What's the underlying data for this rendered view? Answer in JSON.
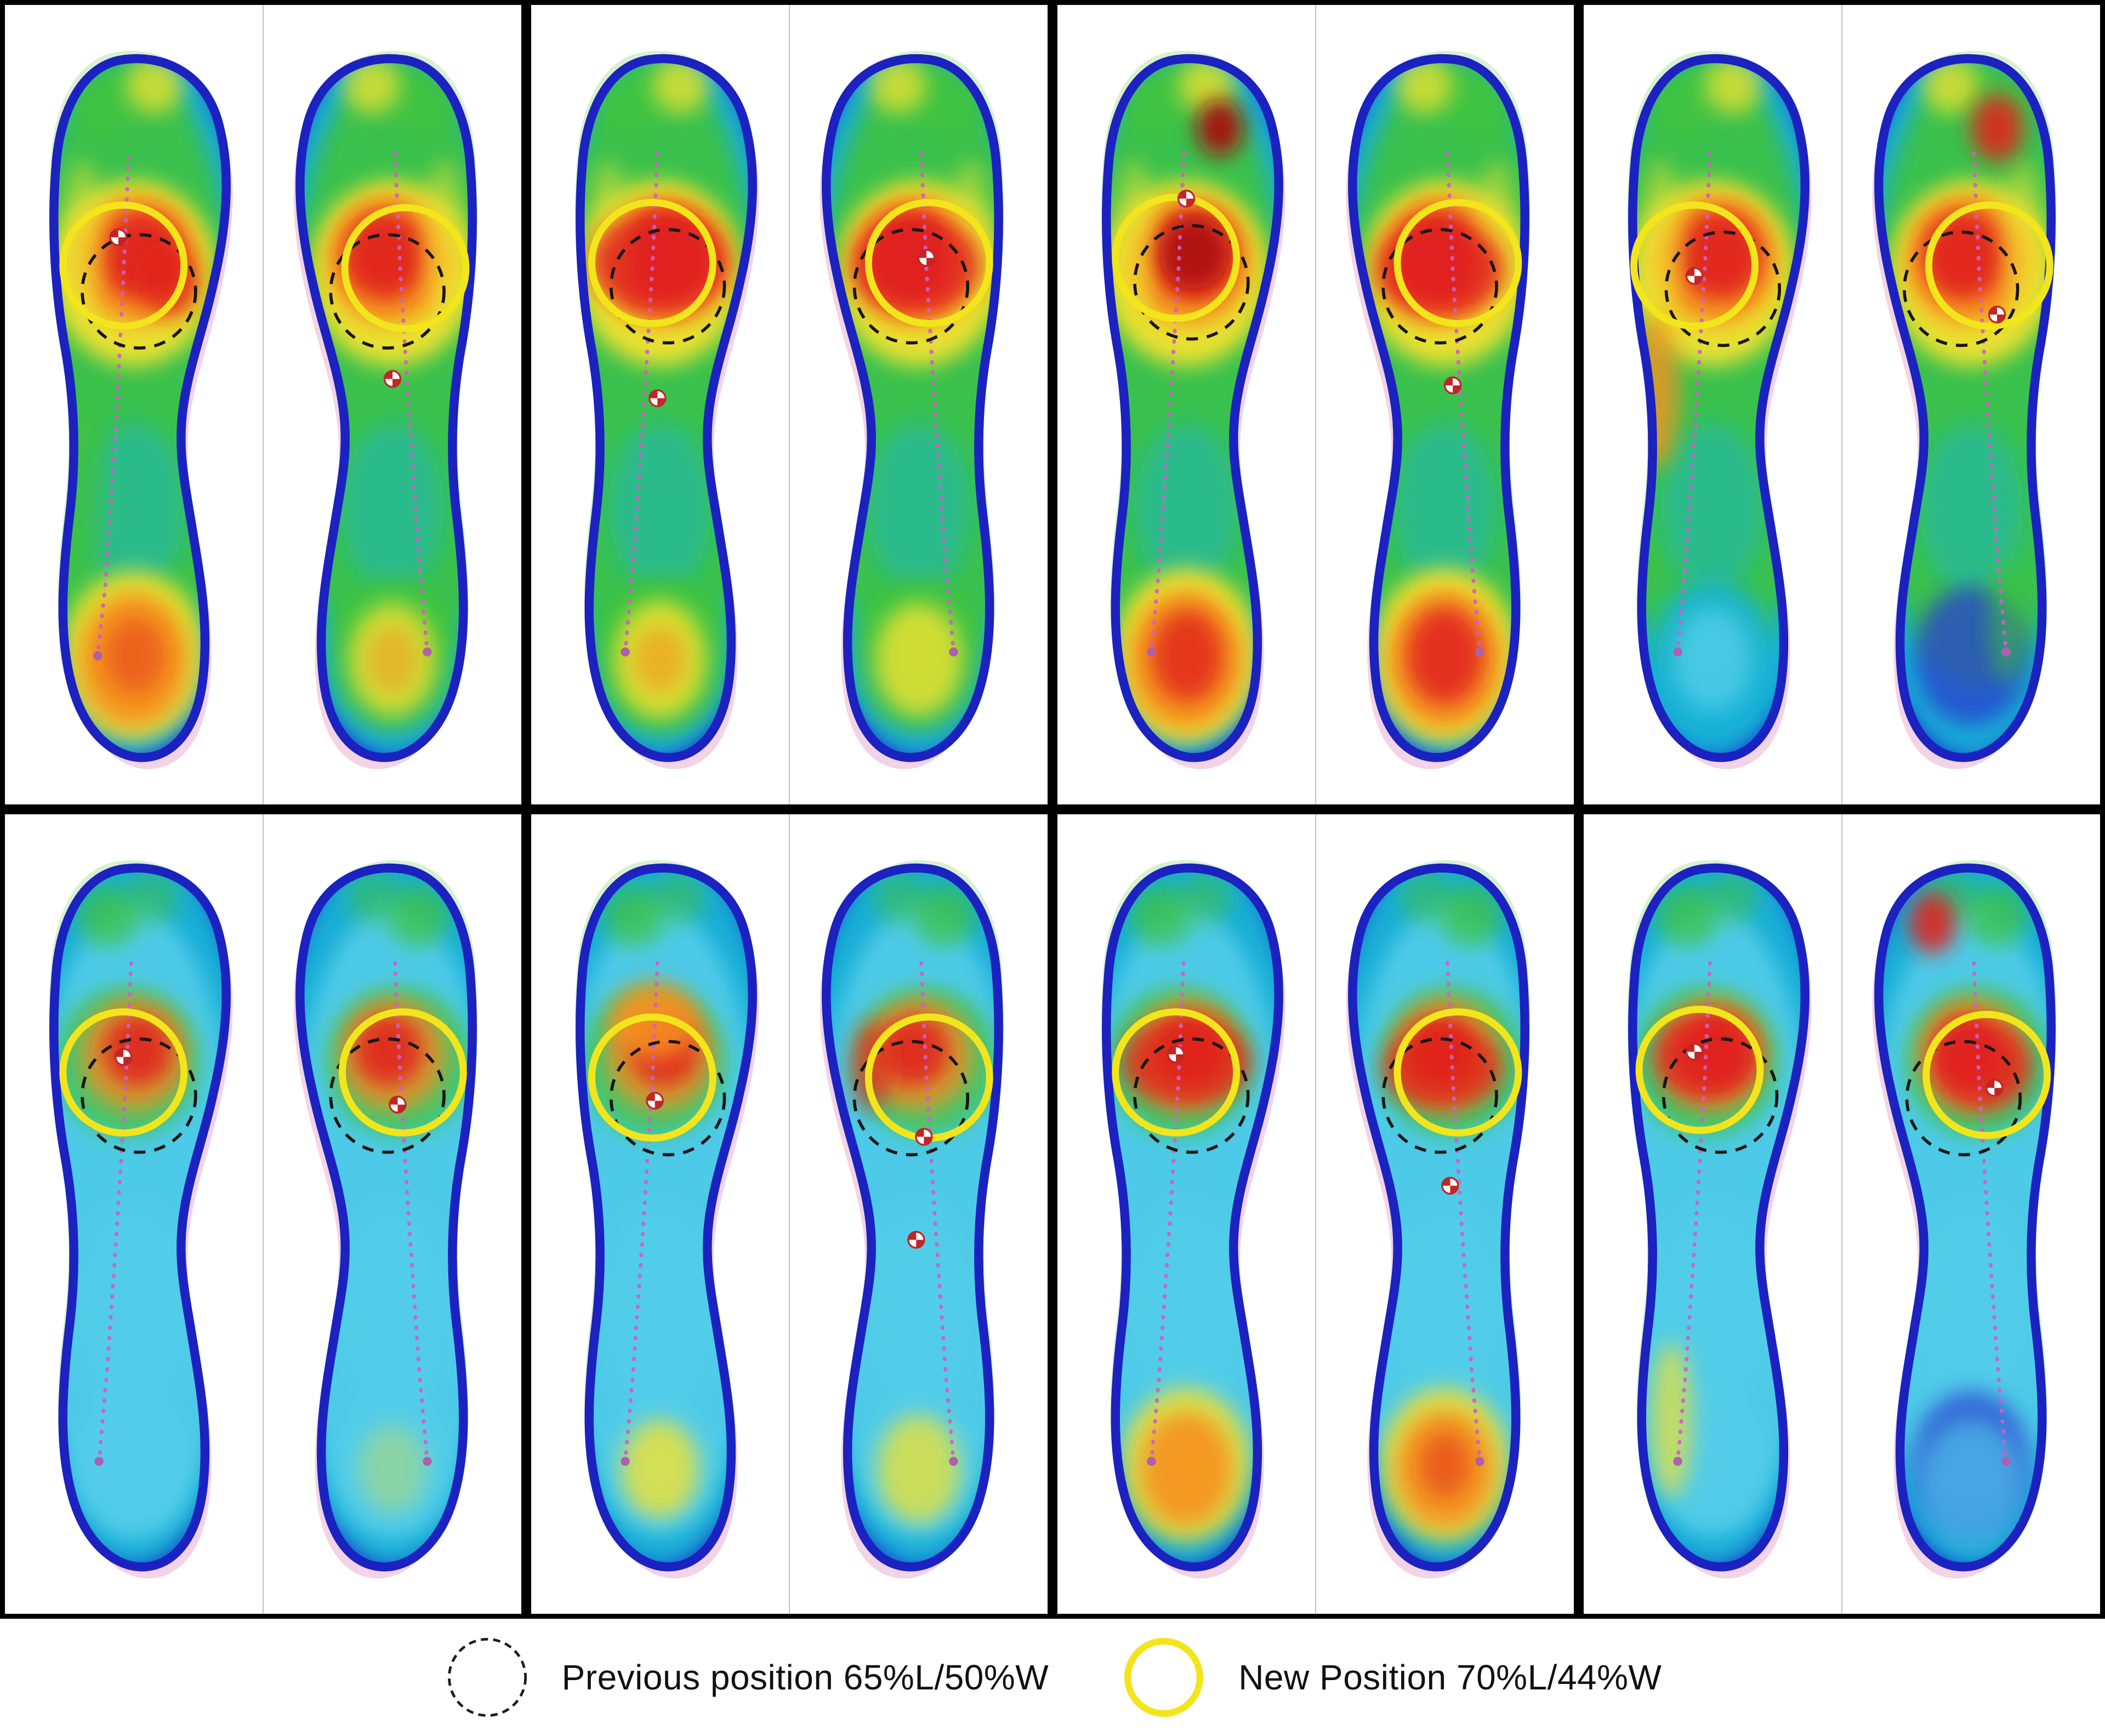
{
  "figure": {
    "rows": 2,
    "cols": 4,
    "background": "#ffffff",
    "panel_border_color": "#000000"
  },
  "legend": {
    "previous_label": "Previous position 65%L/50%W",
    "new_label": "New Position 70%L/44%W",
    "previous_circle_color": "#1a1a1a",
    "new_circle_color": "#f2e51c"
  },
  "chart_data": {
    "type": "heatmap",
    "title": "",
    "description": "Plantar pressure heatmaps for 8 trials (left and right insoles). Dashed black circle marks previous sensor position 65%L/50%W; solid yellow circle marks new position 70%L/44%W. Dotted magenta line is the center-of-pressure trajectory; checkered red/white markers show peak pressure locations.",
    "colormap": [
      "#1626c9",
      "#17b4d6",
      "#53cdea",
      "#3fc33f",
      "#f2e32f",
      "#f7921e",
      "#e0221c",
      "#a80d0d"
    ],
    "annotations": {
      "previous_position": {
        "label": "Previous position 65%L/50%W",
        "length_pct": 65,
        "width_pct": 50,
        "style": "dashed-black-circle"
      },
      "new_position": {
        "label": "New Position 70%L/44%W",
        "length_pct": 70,
        "width_pct": 44,
        "style": "solid-yellow-circle"
      }
    },
    "palette": {
      "c": "#17b4d6",
      "lb": "#53cdea",
      "g": "#3fc33f",
      "y": "#f2e32f",
      "o": "#f7921e",
      "r": "#e0221c",
      "dr": "#a80d0d",
      "b2": "#2a3fd0"
    },
    "patterns": {
      "hi": [
        [
          100,
          300,
          102,
          285,
          "c",
          0.95
        ],
        [
          97,
          285,
          84,
          245,
          "g",
          0.9
        ],
        [
          100,
          208,
          64,
          72,
          "y",
          0.95
        ],
        [
          103,
          198,
          47,
          50,
          "o",
          0.95
        ],
        [
          106,
          194,
          33,
          35,
          "r",
          0.95
        ],
        [
          76,
          78,
          26,
          26,
          "g",
          0.85
        ],
        [
          116,
          62,
          22,
          22,
          "y",
          0.75
        ],
        [
          60,
          180,
          16,
          60,
          "y",
          0.5
        ],
        [
          100,
          390,
          40,
          66,
          "c",
          0.45
        ]
      ],
      "lo": [
        [
          100,
          300,
          102,
          285,
          "c",
          0.95
        ],
        [
          100,
          310,
          84,
          240,
          "lb",
          0.9
        ],
        [
          95,
          192,
          56,
          58,
          "g",
          0.75
        ],
        [
          100,
          186,
          42,
          44,
          "o",
          0.8
        ],
        [
          103,
          183,
          27,
          28,
          "r",
          0.9
        ],
        [
          80,
          78,
          24,
          24,
          "g",
          0.75
        ],
        [
          115,
          64,
          20,
          20,
          "g",
          0.55
        ],
        [
          100,
          385,
          52,
          85,
          "lb",
          0.8
        ]
      ]
    },
    "defaults": {
      "prev_r": 44,
      "new_r": 47,
      "traj_left": [
        [
          98,
          115
        ],
        [
          94,
          205
        ],
        [
          87,
          320
        ],
        [
          79,
          435
        ],
        [
          73,
          502
        ]
      ],
      "traj_right": [
        [
          102,
          115
        ],
        [
          106,
          205
        ],
        [
          113,
          320
        ],
        [
          121,
          435
        ],
        [
          127,
          502
        ]
      ]
    },
    "panels": [
      {
        "id": 1,
        "feet": [
          {
            "side": "left",
            "pattern": "hi",
            "prev": [
              104,
              222
            ],
            "new": [
              92,
              202
            ],
            "markers": [
              [
                88,
                180
              ]
            ],
            "extras": [
              [
                128,
                215,
                22,
                26,
                "r",
                0.8
              ],
              [
                58,
                370,
                20,
                70,
                "g",
                0.6
              ],
              [
                100,
                505,
                56,
                66,
                "y",
                0.9
              ],
              [
                100,
                508,
                42,
                52,
                "o",
                0.95
              ],
              [
                101,
                505,
                24,
                30,
                "r",
                0.45
              ]
            ],
            "traj": [
              [
                96,
                118
              ],
              [
                92,
                210
              ],
              [
                86,
                330
              ],
              [
                78,
                450
              ],
              [
                72,
                505
              ]
            ]
          },
          {
            "side": "right",
            "pattern": "hi",
            "prev": [
              96,
              222
            ],
            "new": [
              110,
              204
            ],
            "markers": [
              [
                100,
                290
              ]
            ],
            "extras": [
              [
                100,
                505,
                50,
                60,
                "g",
                0.85
              ],
              [
                100,
                508,
                34,
                44,
                "y",
                0.8
              ],
              [
                100,
                508,
                20,
                26,
                "o",
                0.5
              ]
            ]
          }
        ]
      },
      {
        "id": 2,
        "feet": [
          {
            "side": "left",
            "pattern": "hi",
            "prev": [
              106,
              218
            ],
            "new": [
              94,
              200
            ],
            "markers": [
              [
                98,
                305
              ]
            ],
            "extras": [
              [
                100,
                200,
                54,
                40,
                "r",
                0.85
              ],
              [
                100,
                505,
                52,
                62,
                "g",
                0.9
              ],
              [
                100,
                508,
                36,
                46,
                "y",
                0.85
              ],
              [
                100,
                508,
                20,
                26,
                "o",
                0.6
              ]
            ]
          },
          {
            "side": "right",
            "pattern": "hi",
            "prev": [
              94,
              218
            ],
            "new": [
              108,
              200
            ],
            "markers": [
              [
                106,
                196
              ]
            ],
            "extras": [
              [
                98,
                202,
                50,
                38,
                "r",
                0.85
              ],
              [
                100,
                505,
                50,
                60,
                "g",
                0.85
              ],
              [
                100,
                508,
                34,
                44,
                "y",
                0.8
              ]
            ]
          }
        ]
      },
      {
        "id": 3,
        "feet": [
          {
            "side": "left",
            "pattern": "hi",
            "prev": [
              104,
              215
            ],
            "new": [
              92,
              196
            ],
            "markers": [
              [
                100,
                150
              ]
            ],
            "extras": [
              [
                126,
                95,
                18,
                22,
                "dr",
                0.95
              ],
              [
                106,
                192,
                26,
                28,
                "dr",
                0.85
              ],
              [
                100,
                505,
                56,
                68,
                "y",
                0.95
              ],
              [
                100,
                508,
                44,
                54,
                "o",
                0.95
              ],
              [
                101,
                505,
                28,
                36,
                "r",
                0.8
              ]
            ]
          },
          {
            "side": "right",
            "pattern": "hi",
            "prev": [
              96,
              218
            ],
            "new": [
              110,
              200
            ],
            "markers": [
              [
                106,
                295
              ]
            ],
            "extras": [
              [
                96,
                205,
                50,
                36,
                "r",
                0.85
              ],
              [
                100,
                505,
                56,
                68,
                "y",
                0.95
              ],
              [
                100,
                508,
                44,
                54,
                "o",
                0.95
              ],
              [
                100,
                505,
                30,
                38,
                "r",
                0.85
              ]
            ]
          }
        ]
      },
      {
        "id": 4,
        "feet": [
          {
            "side": "left",
            "pattern": "hi",
            "prev": [
              108,
              220
            ],
            "new": [
              86,
              202
            ],
            "markers": [
              [
                86,
                210
              ]
            ],
            "extras": [
              [
                56,
                300,
                18,
                60,
                "o",
                0.8
              ],
              [
                100,
                505,
                48,
                58,
                "c",
                0.9
              ],
              [
                100,
                508,
                30,
                40,
                "lb",
                0.8
              ]
            ]
          },
          {
            "side": "right",
            "pattern": "hi",
            "prev": [
              92,
              220
            ],
            "new": [
              114,
              202
            ],
            "markers": [
              [
                120,
                240
              ]
            ],
            "extras": [
              [
                120,
                95,
                20,
                26,
                "r",
                0.9
              ],
              [
                100,
                505,
                44,
                54,
                "b2",
                0.75
              ],
              [
                128,
                478,
                14,
                48,
                "g",
                0.55
              ]
            ]
          }
        ]
      },
      {
        "id": 5,
        "feet": [
          {
            "side": "left",
            "pattern": "lo",
            "prev": [
              104,
              218
            ],
            "new": [
              92,
              200
            ],
            "markers": [
              [
                92,
                188
              ]
            ],
            "extras": [
              [
                100,
                505,
                48,
                58,
                "lb",
                0.9
              ]
            ]
          },
          {
            "side": "right",
            "pattern": "lo",
            "prev": [
              96,
              218
            ],
            "new": [
              108,
              200
            ],
            "markers": [
              [
                104,
                225
              ]
            ],
            "extras": [
              [
                100,
                505,
                48,
                58,
                "lb",
                0.9
              ],
              [
                100,
                508,
                26,
                34,
                "y",
                0.35
              ]
            ]
          }
        ]
      },
      {
        "id": 6,
        "feet": [
          {
            "side": "left",
            "pattern": "lo",
            "prev": [
              106,
              220
            ],
            "new": [
              94,
              204
            ],
            "markers": [
              [
                96,
                222
              ]
            ],
            "extras": [
              [
                95,
                160,
                34,
                30,
                "o",
                0.85
              ],
              [
                100,
                505,
                44,
                54,
                "lb",
                0.9
              ],
              [
                100,
                508,
                30,
                38,
                "y",
                0.8
              ]
            ]
          },
          {
            "side": "right",
            "pattern": "lo",
            "prev": [
              94,
              220
            ],
            "new": [
              108,
              204
            ],
            "markers": [
              [
                104,
                250
              ],
              [
                98,
                330
              ]
            ],
            "extras": [
              [
                64,
                195,
                16,
                34,
                "r",
                0.7
              ],
              [
                100,
                505,
                46,
                56,
                "lb",
                0.9
              ],
              [
                100,
                508,
                32,
                42,
                "y",
                0.75
              ]
            ]
          }
        ]
      },
      {
        "id": 7,
        "feet": [
          {
            "side": "left",
            "pattern": "lo",
            "prev": [
              104,
              218
            ],
            "new": [
              92,
              200
            ],
            "markers": [
              [
                92,
                186
              ]
            ],
            "extras": [
              [
                100,
                192,
                50,
                34,
                "r",
                0.8
              ],
              [
                100,
                505,
                50,
                60,
                "y",
                0.85
              ],
              [
                100,
                508,
                36,
                44,
                "o",
                0.9
              ]
            ]
          },
          {
            "side": "right",
            "pattern": "lo",
            "prev": [
              96,
              218
            ],
            "new": [
              110,
              200
            ],
            "markers": [
              [
                104,
                288
              ]
            ],
            "extras": [
              [
                98,
                196,
                46,
                32,
                "r",
                0.8
              ],
              [
                100,
                505,
                50,
                60,
                "y",
                0.85
              ],
              [
                100,
                508,
                38,
                46,
                "o",
                0.9
              ],
              [
                100,
                505,
                20,
                26,
                "r",
                0.5
              ]
            ]
          }
        ]
      },
      {
        "id": 8,
        "feet": [
          {
            "side": "left",
            "pattern": "lo",
            "prev": [
              106,
              218
            ],
            "new": [
              90,
              198
            ],
            "markers": [
              [
                86,
                184
              ]
            ],
            "extras": [
              [
                95,
                188,
                40,
                34,
                "r",
                0.85
              ],
              [
                100,
                505,
                46,
                56,
                "lb",
                0.85
              ],
              [
                68,
                470,
                16,
                60,
                "y",
                0.7
              ]
            ]
          },
          {
            "side": "right",
            "pattern": "lo",
            "prev": [
              94,
              220
            ],
            "new": [
              112,
              202
            ],
            "markers": [
              [
                118,
                212
              ]
            ],
            "extras": [
              [
                70,
                84,
                18,
                24,
                "r",
                0.9
              ],
              [
                108,
                195,
                38,
                34,
                "r",
                0.85
              ],
              [
                100,
                505,
                46,
                58,
                "b2",
                0.7
              ],
              [
                100,
                520,
                40,
                50,
                "lb",
                0.6
              ]
            ]
          }
        ]
      }
    ]
  }
}
